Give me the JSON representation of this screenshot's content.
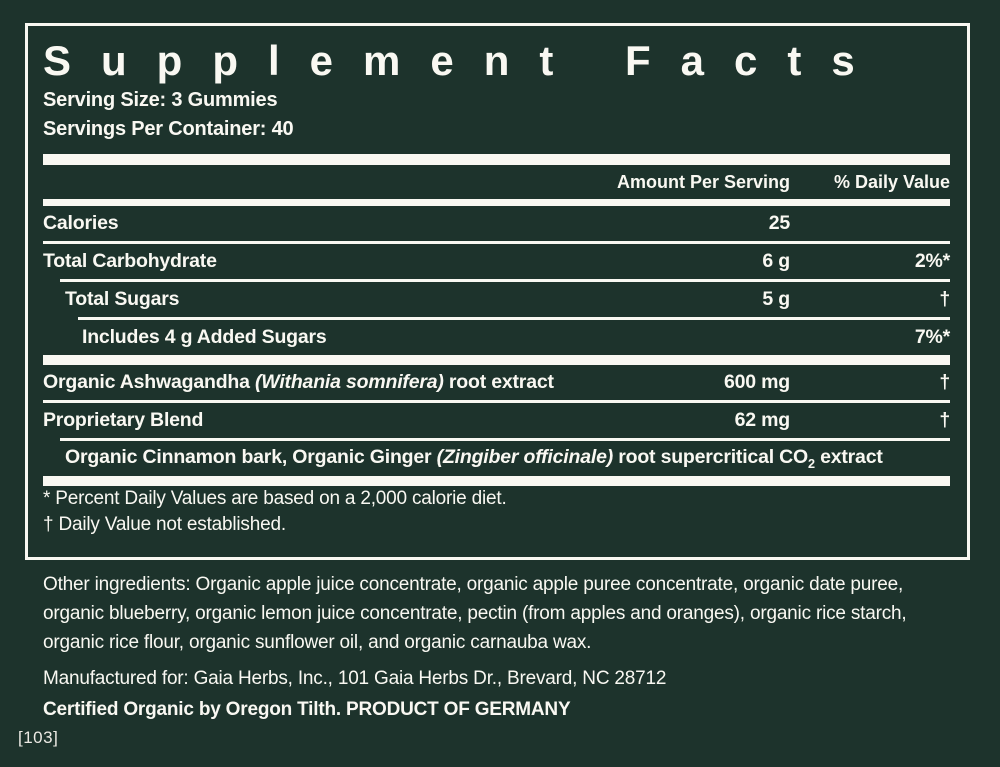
{
  "colors": {
    "background": "#1d332c",
    "ink": "#f9f8f2"
  },
  "label": {
    "title": "Supplement Facts",
    "serving_size": "Serving Size: 3 Gummies",
    "servings_per_container": "Servings Per Container: 40",
    "columns": {
      "amount": "Amount Per Serving",
      "daily_value": "% Daily Value"
    },
    "rows": [
      {
        "name": "Calories",
        "amount": "25",
        "daily_value": ""
      },
      {
        "name": "Total Carbohydrate",
        "amount": "6 g",
        "daily_value": "2%*"
      },
      {
        "name": "Total Sugars",
        "amount": "5 g",
        "daily_value": "†"
      },
      {
        "name": "Includes 4 g Added Sugars",
        "amount": "",
        "daily_value": "7%*"
      },
      {
        "name": "Organic Ashwagandha ",
        "latin": "(Withania somnifera)",
        "name_end": " root extract",
        "amount": "600 mg",
        "daily_value": "†"
      },
      {
        "name": "Proprietary Blend",
        "amount": "62 mg",
        "daily_value": "†"
      },
      {
        "name": "Organic Cinnamon bark, Organic Ginger ",
        "latin": "(Zingiber officinale)",
        "name_mid": " root supercritical CO",
        "subscript": "2",
        "name_end": " extract",
        "amount": "",
        "daily_value": ""
      }
    ],
    "footnotes": [
      "* Percent Daily Values are based on a 2,000 calorie diet.",
      "† Daily Value not established."
    ]
  },
  "details": {
    "other_ingredients": "Other ingredients: Organic apple juice concentrate, organic apple puree concentrate, organic date puree, organic blueberry, organic lemon juice concentrate, pectin (from apples and oranges), organic rice starch, organic rice flour, organic sunflower oil, and organic carnauba wax.",
    "manufactured_for": "Manufactured for: Gaia Herbs, Inc., 101 Gaia Herbs Dr., Brevard, NC 28712",
    "certification": "Certified Organic by Oregon Tilth. PRODUCT OF GERMANY",
    "footer_code": "[103]"
  }
}
